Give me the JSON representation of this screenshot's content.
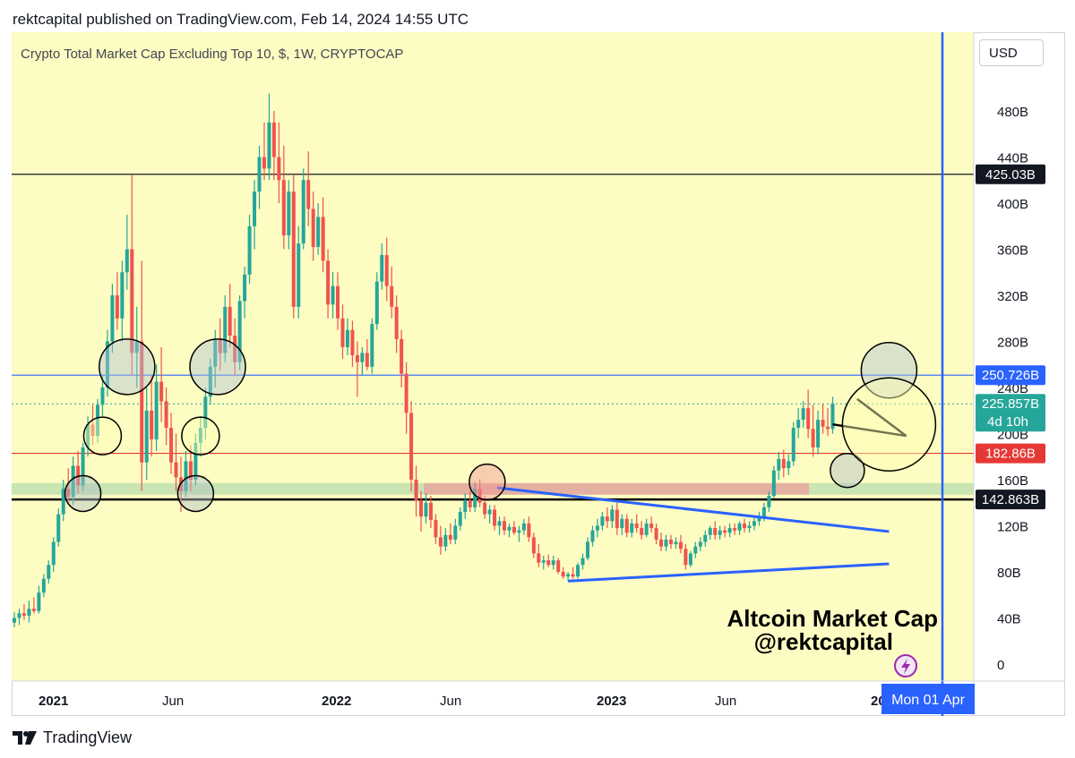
{
  "header": {
    "published_text": "rektcapital published on TradingView.com, Feb 14, 2024 14:55 UTC"
  },
  "footer": {
    "brand": "TradingView"
  },
  "scale_button": "USD",
  "chart_data": {
    "type": "candlestick",
    "title": "Crypto Total Market Cap Excluding Top 10, $, 1W, CRYPTOCAP",
    "watermark_lines": [
      "Altcoin Market Cap",
      "@rektcapital"
    ],
    "y_axis": {
      "unit": "B",
      "ticks": [
        0,
        40,
        80,
        120,
        160,
        200,
        240,
        280,
        320,
        360,
        400,
        440,
        480
      ],
      "range": [
        -10,
        510
      ]
    },
    "x_axis": {
      "labels": [
        "2021",
        "Jun",
        "2022",
        "Jun",
        "2023",
        "Jun",
        "202"
      ],
      "crosshair_label": "Mon 01 Apr"
    },
    "price_labels": [
      {
        "text": "425.03B",
        "value": 425.03,
        "style": "black"
      },
      {
        "text": "250.726B",
        "value": 250.726,
        "style": "blue"
      },
      {
        "text": "225.857B",
        "value": 225.857,
        "style": "teal",
        "subtext": "4d 10h"
      },
      {
        "text": "182.86B",
        "value": 182.86,
        "style": "red"
      },
      {
        "text": "142.863B",
        "value": 142.863,
        "style": "black"
      }
    ],
    "horizontal_levels": [
      {
        "value": 425.03,
        "color": "#131722"
      },
      {
        "value": 250.726,
        "color": "#2962ff"
      },
      {
        "value": 182.86,
        "color": "#e53935"
      },
      {
        "value": 142.863,
        "color": "#000000"
      }
    ],
    "current_value": 225.857,
    "colors": {
      "up": "#26a69a",
      "down": "#ef5350",
      "background": "#fdfcc2",
      "crosshair": "#2962ff"
    },
    "series": [
      {
        "x": 0,
        "o": 36,
        "h": 45,
        "l": 32,
        "c": 40
      },
      {
        "x": 1,
        "o": 40,
        "h": 48,
        "l": 34,
        "c": 44
      },
      {
        "x": 2,
        "o": 44,
        "h": 52,
        "l": 38,
        "c": 42
      },
      {
        "x": 3,
        "o": 42,
        "h": 55,
        "l": 36,
        "c": 48
      },
      {
        "x": 4,
        "o": 48,
        "h": 58,
        "l": 44,
        "c": 46
      },
      {
        "x": 5,
        "o": 46,
        "h": 68,
        "l": 44,
        "c": 62
      },
      {
        "x": 6,
        "o": 62,
        "h": 78,
        "l": 58,
        "c": 74
      },
      {
        "x": 7,
        "o": 74,
        "h": 90,
        "l": 70,
        "c": 86
      },
      {
        "x": 8,
        "o": 86,
        "h": 110,
        "l": 80,
        "c": 106
      },
      {
        "x": 9,
        "o": 106,
        "h": 135,
        "l": 102,
        "c": 130
      },
      {
        "x": 10,
        "o": 130,
        "h": 160,
        "l": 124,
        "c": 152
      },
      {
        "x": 11,
        "o": 152,
        "h": 170,
        "l": 140,
        "c": 145
      },
      {
        "x": 12,
        "o": 145,
        "h": 180,
        "l": 138,
        "c": 172
      },
      {
        "x": 13,
        "o": 172,
        "h": 185,
        "l": 148,
        "c": 155
      },
      {
        "x": 14,
        "o": 155,
        "h": 192,
        "l": 150,
        "c": 188
      },
      {
        "x": 15,
        "o": 188,
        "h": 215,
        "l": 180,
        "c": 208
      },
      {
        "x": 16,
        "o": 208,
        "h": 225,
        "l": 190,
        "c": 198
      },
      {
        "x": 17,
        "o": 198,
        "h": 230,
        "l": 192,
        "c": 225
      },
      {
        "x": 18,
        "o": 225,
        "h": 250,
        "l": 215,
        "c": 240
      },
      {
        "x": 19,
        "o": 240,
        "h": 290,
        "l": 232,
        "c": 280
      },
      {
        "x": 20,
        "o": 280,
        "h": 330,
        "l": 270,
        "c": 320
      },
      {
        "x": 21,
        "o": 320,
        "h": 340,
        "l": 290,
        "c": 300
      },
      {
        "x": 22,
        "o": 300,
        "h": 350,
        "l": 280,
        "c": 340
      },
      {
        "x": 23,
        "o": 340,
        "h": 390,
        "l": 325,
        "c": 360
      },
      {
        "x": 24,
        "o": 360,
        "h": 425,
        "l": 250,
        "c": 270
      },
      {
        "x": 25,
        "o": 270,
        "h": 310,
        "l": 240,
        "c": 280
      },
      {
        "x": 26,
        "o": 280,
        "h": 350,
        "l": 150,
        "c": 175
      },
      {
        "x": 27,
        "o": 175,
        "h": 240,
        "l": 160,
        "c": 220
      },
      {
        "x": 28,
        "o": 220,
        "h": 250,
        "l": 180,
        "c": 195
      },
      {
        "x": 29,
        "o": 195,
        "h": 260,
        "l": 185,
        "c": 245
      },
      {
        "x": 30,
        "o": 245,
        "h": 275,
        "l": 210,
        "c": 228
      },
      {
        "x": 31,
        "o": 228,
        "h": 240,
        "l": 190,
        "c": 205
      },
      {
        "x": 32,
        "o": 205,
        "h": 218,
        "l": 165,
        "c": 175
      },
      {
        "x": 33,
        "o": 175,
        "h": 200,
        "l": 150,
        "c": 162
      },
      {
        "x": 34,
        "o": 162,
        "h": 180,
        "l": 132,
        "c": 150
      },
      {
        "x": 35,
        "o": 150,
        "h": 185,
        "l": 145,
        "c": 176
      },
      {
        "x": 36,
        "o": 176,
        "h": 190,
        "l": 150,
        "c": 160
      },
      {
        "x": 37,
        "o": 160,
        "h": 200,
        "l": 155,
        "c": 192
      },
      {
        "x": 38,
        "o": 192,
        "h": 215,
        "l": 180,
        "c": 205
      },
      {
        "x": 39,
        "o": 205,
        "h": 240,
        "l": 195,
        "c": 232
      },
      {
        "x": 40,
        "o": 232,
        "h": 265,
        "l": 225,
        "c": 258
      },
      {
        "x": 41,
        "o": 258,
        "h": 290,
        "l": 240,
        "c": 282
      },
      {
        "x": 42,
        "o": 282,
        "h": 300,
        "l": 255,
        "c": 270
      },
      {
        "x": 43,
        "o": 270,
        "h": 320,
        "l": 262,
        "c": 310
      },
      {
        "x": 44,
        "o": 310,
        "h": 330,
        "l": 275,
        "c": 285
      },
      {
        "x": 45,
        "o": 285,
        "h": 300,
        "l": 250,
        "c": 262
      },
      {
        "x": 46,
        "o": 262,
        "h": 320,
        "l": 255,
        "c": 315
      },
      {
        "x": 47,
        "o": 315,
        "h": 345,
        "l": 300,
        "c": 338
      },
      {
        "x": 48,
        "o": 338,
        "h": 390,
        "l": 330,
        "c": 380
      },
      {
        "x": 49,
        "o": 380,
        "h": 420,
        "l": 360,
        "c": 410
      },
      {
        "x": 50,
        "o": 410,
        "h": 450,
        "l": 395,
        "c": 440
      },
      {
        "x": 51,
        "o": 440,
        "h": 470,
        "l": 420,
        "c": 430
      },
      {
        "x": 52,
        "o": 430,
        "h": 495,
        "l": 420,
        "c": 470
      },
      {
        "x": 53,
        "o": 470,
        "h": 480,
        "l": 420,
        "c": 440
      },
      {
        "x": 54,
        "o": 440,
        "h": 470,
        "l": 400,
        "c": 420
      },
      {
        "x": 55,
        "o": 420,
        "h": 450,
        "l": 360,
        "c": 372
      },
      {
        "x": 56,
        "o": 372,
        "h": 420,
        "l": 360,
        "c": 410
      },
      {
        "x": 57,
        "o": 410,
        "h": 425,
        "l": 300,
        "c": 310
      },
      {
        "x": 58,
        "o": 310,
        "h": 380,
        "l": 300,
        "c": 365
      },
      {
        "x": 59,
        "o": 365,
        "h": 430,
        "l": 360,
        "c": 420
      },
      {
        "x": 60,
        "o": 420,
        "h": 445,
        "l": 380,
        "c": 395
      },
      {
        "x": 61,
        "o": 395,
        "h": 410,
        "l": 350,
        "c": 362
      },
      {
        "x": 62,
        "o": 362,
        "h": 400,
        "l": 355,
        "c": 388
      },
      {
        "x": 63,
        "o": 388,
        "h": 405,
        "l": 340,
        "c": 350
      },
      {
        "x": 64,
        "o": 350,
        "h": 360,
        "l": 300,
        "c": 312
      },
      {
        "x": 65,
        "o": 312,
        "h": 340,
        "l": 300,
        "c": 328
      },
      {
        "x": 66,
        "o": 328,
        "h": 340,
        "l": 290,
        "c": 300
      },
      {
        "x": 67,
        "o": 300,
        "h": 312,
        "l": 265,
        "c": 275
      },
      {
        "x": 68,
        "o": 275,
        "h": 300,
        "l": 268,
        "c": 290
      },
      {
        "x": 69,
        "o": 290,
        "h": 298,
        "l": 258,
        "c": 268
      },
      {
        "x": 70,
        "o": 268,
        "h": 280,
        "l": 232,
        "c": 262
      },
      {
        "x": 71,
        "o": 262,
        "h": 275,
        "l": 250,
        "c": 270
      },
      {
        "x": 72,
        "o": 270,
        "h": 282,
        "l": 255,
        "c": 258
      },
      {
        "x": 73,
        "o": 258,
        "h": 300,
        "l": 252,
        "c": 295
      },
      {
        "x": 74,
        "o": 295,
        "h": 340,
        "l": 290,
        "c": 332
      },
      {
        "x": 75,
        "o": 332,
        "h": 365,
        "l": 325,
        "c": 355
      },
      {
        "x": 76,
        "o": 355,
        "h": 370,
        "l": 315,
        "c": 328
      },
      {
        "x": 77,
        "o": 328,
        "h": 345,
        "l": 300,
        "c": 310
      },
      {
        "x": 78,
        "o": 310,
        "h": 320,
        "l": 270,
        "c": 282
      },
      {
        "x": 79,
        "o": 282,
        "h": 290,
        "l": 240,
        "c": 252
      },
      {
        "x": 80,
        "o": 252,
        "h": 262,
        "l": 200,
        "c": 218
      },
      {
        "x": 81,
        "o": 218,
        "h": 228,
        "l": 150,
        "c": 160
      },
      {
        "x": 82,
        "o": 160,
        "h": 172,
        "l": 128,
        "c": 142
      },
      {
        "x": 83,
        "o": 142,
        "h": 150,
        "l": 115,
        "c": 128
      },
      {
        "x": 84,
        "o": 128,
        "h": 148,
        "l": 122,
        "c": 140
      },
      {
        "x": 85,
        "o": 140,
        "h": 146,
        "l": 118,
        "c": 125
      },
      {
        "x": 86,
        "o": 125,
        "h": 130,
        "l": 104,
        "c": 110
      },
      {
        "x": 87,
        "o": 110,
        "h": 120,
        "l": 95,
        "c": 102
      },
      {
        "x": 88,
        "o": 102,
        "h": 118,
        "l": 98,
        "c": 112
      },
      {
        "x": 89,
        "o": 112,
        "h": 122,
        "l": 104,
        "c": 108
      },
      {
        "x": 90,
        "o": 108,
        "h": 126,
        "l": 104,
        "c": 120
      },
      {
        "x": 91,
        "o": 120,
        "h": 136,
        "l": 116,
        "c": 132
      },
      {
        "x": 92,
        "o": 132,
        "h": 148,
        "l": 126,
        "c": 142
      },
      {
        "x": 93,
        "o": 142,
        "h": 150,
        "l": 132,
        "c": 136
      },
      {
        "x": 94,
        "o": 136,
        "h": 158,
        "l": 132,
        "c": 152
      },
      {
        "x": 95,
        "o": 152,
        "h": 160,
        "l": 136,
        "c": 140
      },
      {
        "x": 96,
        "o": 140,
        "h": 146,
        "l": 126,
        "c": 130
      },
      {
        "x": 97,
        "o": 130,
        "h": 138,
        "l": 122,
        "c": 134
      },
      {
        "x": 98,
        "o": 134,
        "h": 138,
        "l": 116,
        "c": 120
      },
      {
        "x": 99,
        "o": 120,
        "h": 128,
        "l": 112,
        "c": 124
      },
      {
        "x": 100,
        "o": 124,
        "h": 128,
        "l": 112,
        "c": 116
      },
      {
        "x": 101,
        "o": 116,
        "h": 122,
        "l": 110,
        "c": 119
      },
      {
        "x": 102,
        "o": 119,
        "h": 124,
        "l": 112,
        "c": 114
      },
      {
        "x": 103,
        "o": 114,
        "h": 120,
        "l": 106,
        "c": 116
      },
      {
        "x": 104,
        "o": 116,
        "h": 126,
        "l": 112,
        "c": 122
      },
      {
        "x": 105,
        "o": 122,
        "h": 128,
        "l": 106,
        "c": 110
      },
      {
        "x": 106,
        "o": 110,
        "h": 114,
        "l": 92,
        "c": 96
      },
      {
        "x": 107,
        "o": 96,
        "h": 104,
        "l": 84,
        "c": 88
      },
      {
        "x": 108,
        "o": 88,
        "h": 94,
        "l": 82,
        "c": 90
      },
      {
        "x": 109,
        "o": 90,
        "h": 95,
        "l": 84,
        "c": 86
      },
      {
        "x": 110,
        "o": 86,
        "h": 94,
        "l": 82,
        "c": 90
      },
      {
        "x": 111,
        "o": 90,
        "h": 92,
        "l": 78,
        "c": 80
      },
      {
        "x": 112,
        "o": 80,
        "h": 84,
        "l": 74,
        "c": 76
      },
      {
        "x": 113,
        "o": 76,
        "h": 80,
        "l": 72,
        "c": 78
      },
      {
        "x": 114,
        "o": 78,
        "h": 84,
        "l": 74,
        "c": 76
      },
      {
        "x": 115,
        "o": 76,
        "h": 88,
        "l": 74,
        "c": 86
      },
      {
        "x": 116,
        "o": 86,
        "h": 96,
        "l": 82,
        "c": 92
      },
      {
        "x": 117,
        "o": 92,
        "h": 110,
        "l": 90,
        "c": 106
      },
      {
        "x": 118,
        "o": 106,
        "h": 120,
        "l": 102,
        "c": 116
      },
      {
        "x": 119,
        "o": 116,
        "h": 126,
        "l": 110,
        "c": 120
      },
      {
        "x": 120,
        "o": 120,
        "h": 132,
        "l": 116,
        "c": 128
      },
      {
        "x": 121,
        "o": 128,
        "h": 136,
        "l": 118,
        "c": 124
      },
      {
        "x": 122,
        "o": 124,
        "h": 138,
        "l": 118,
        "c": 134
      },
      {
        "x": 123,
        "o": 134,
        "h": 140,
        "l": 112,
        "c": 118
      },
      {
        "x": 124,
        "o": 118,
        "h": 130,
        "l": 112,
        "c": 126
      },
      {
        "x": 125,
        "o": 126,
        "h": 130,
        "l": 110,
        "c": 114
      },
      {
        "x": 126,
        "o": 114,
        "h": 126,
        "l": 110,
        "c": 122
      },
      {
        "x": 127,
        "o": 122,
        "h": 130,
        "l": 114,
        "c": 118
      },
      {
        "x": 128,
        "o": 118,
        "h": 124,
        "l": 108,
        "c": 112
      },
      {
        "x": 129,
        "o": 112,
        "h": 126,
        "l": 110,
        "c": 122
      },
      {
        "x": 130,
        "o": 122,
        "h": 128,
        "l": 114,
        "c": 118
      },
      {
        "x": 131,
        "o": 118,
        "h": 122,
        "l": 104,
        "c": 108
      },
      {
        "x": 132,
        "o": 108,
        "h": 114,
        "l": 98,
        "c": 102
      },
      {
        "x": 133,
        "o": 102,
        "h": 112,
        "l": 98,
        "c": 108
      },
      {
        "x": 134,
        "o": 108,
        "h": 112,
        "l": 100,
        "c": 104
      },
      {
        "x": 135,
        "o": 104,
        "h": 110,
        "l": 100,
        "c": 106
      },
      {
        "x": 136,
        "o": 106,
        "h": 112,
        "l": 96,
        "c": 100
      },
      {
        "x": 137,
        "o": 100,
        "h": 104,
        "l": 82,
        "c": 86
      },
      {
        "x": 138,
        "o": 86,
        "h": 98,
        "l": 84,
        "c": 96
      },
      {
        "x": 139,
        "o": 96,
        "h": 106,
        "l": 92,
        "c": 102
      },
      {
        "x": 140,
        "o": 102,
        "h": 110,
        "l": 98,
        "c": 106
      },
      {
        "x": 141,
        "o": 106,
        "h": 116,
        "l": 102,
        "c": 112
      },
      {
        "x": 142,
        "o": 112,
        "h": 120,
        "l": 108,
        "c": 118
      },
      {
        "x": 143,
        "o": 118,
        "h": 124,
        "l": 108,
        "c": 112
      },
      {
        "x": 144,
        "o": 112,
        "h": 120,
        "l": 108,
        "c": 116
      },
      {
        "x": 145,
        "o": 116,
        "h": 120,
        "l": 110,
        "c": 114
      },
      {
        "x": 146,
        "o": 114,
        "h": 122,
        "l": 110,
        "c": 118
      },
      {
        "x": 147,
        "o": 118,
        "h": 122,
        "l": 112,
        "c": 116
      },
      {
        "x": 148,
        "o": 116,
        "h": 124,
        "l": 112,
        "c": 122
      },
      {
        "x": 149,
        "o": 122,
        "h": 126,
        "l": 114,
        "c": 118
      },
      {
        "x": 150,
        "o": 118,
        "h": 124,
        "l": 114,
        "c": 120
      },
      {
        "x": 151,
        "o": 120,
        "h": 128,
        "l": 116,
        "c": 124
      },
      {
        "x": 152,
        "o": 124,
        "h": 132,
        "l": 120,
        "c": 128
      },
      {
        "x": 153,
        "o": 128,
        "h": 140,
        "l": 124,
        "c": 136
      },
      {
        "x": 154,
        "o": 136,
        "h": 150,
        "l": 132,
        "c": 146
      },
      {
        "x": 155,
        "o": 146,
        "h": 172,
        "l": 144,
        "c": 168
      },
      {
        "x": 156,
        "o": 168,
        "h": 184,
        "l": 160,
        "c": 178
      },
      {
        "x": 157,
        "o": 178,
        "h": 186,
        "l": 162,
        "c": 170
      },
      {
        "x": 158,
        "o": 170,
        "h": 182,
        "l": 164,
        "c": 176
      },
      {
        "x": 159,
        "o": 176,
        "h": 210,
        "l": 172,
        "c": 205
      },
      {
        "x": 160,
        "o": 205,
        "h": 222,
        "l": 196,
        "c": 212
      },
      {
        "x": 161,
        "o": 212,
        "h": 228,
        "l": 205,
        "c": 222
      },
      {
        "x": 162,
        "o": 222,
        "h": 238,
        "l": 196,
        "c": 204
      },
      {
        "x": 163,
        "o": 204,
        "h": 225,
        "l": 180,
        "c": 188
      },
      {
        "x": 164,
        "o": 188,
        "h": 220,
        "l": 182,
        "c": 212
      },
      {
        "x": 165,
        "o": 212,
        "h": 226,
        "l": 200,
        "c": 206
      },
      {
        "x": 166,
        "o": 206,
        "h": 222,
        "l": 198,
        "c": 204
      },
      {
        "x": 167,
        "o": 204,
        "h": 232,
        "l": 200,
        "c": 226
      }
    ]
  }
}
